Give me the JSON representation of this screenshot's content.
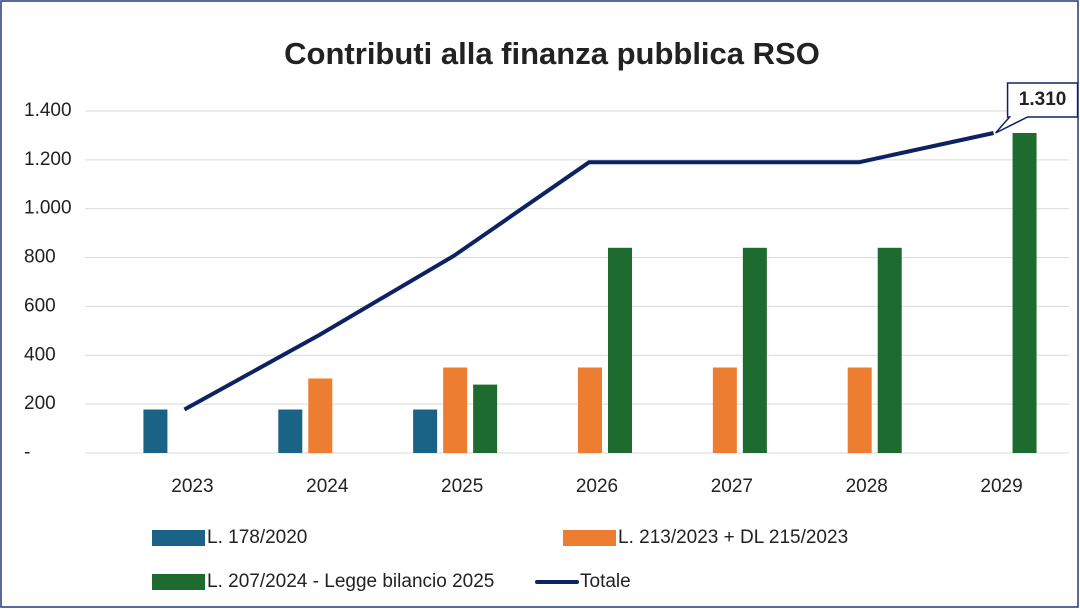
{
  "chart_data": {
    "type": "bar",
    "title": "Contributi alla finanza pubblica RSO",
    "categories": [
      "2023",
      "2024",
      "2025",
      "2026",
      "2027",
      "2028",
      "2029"
    ],
    "series": [
      {
        "name": "L. 178/2020",
        "color": "#1b6287",
        "values": [
          178,
          178,
          178,
          null,
          null,
          null,
          null
        ]
      },
      {
        "name": "L. 213/2023 + DL 215/2023",
        "color": "#ed7d31",
        "values": [
          null,
          305,
          350,
          350,
          350,
          350,
          null
        ]
      },
      {
        "name": "L. 207/2024 - Legge bilancio 2025",
        "color": "#1e6b2f",
        "values": [
          null,
          null,
          280,
          840,
          840,
          840,
          1310
        ]
      },
      {
        "name": "Totale",
        "type": "line",
        "color": "#0d2263",
        "values": [
          178,
          483,
          808,
          1190,
          1190,
          1190,
          1310
        ],
        "value_labels": [
          null,
          null,
          null,
          null,
          null,
          null,
          "1.310"
        ]
      }
    ],
    "ylim": [
      0,
      1400
    ],
    "yticks": [
      {
        "value": 0,
        "label": "-"
      },
      200,
      400,
      600,
      800,
      {
        "value": 1000,
        "label": "1.000"
      },
      {
        "value": 1200,
        "label": "1.200"
      },
      {
        "value": 1400,
        "label": "1.400"
      }
    ],
    "grid": true,
    "legend": "bottom"
  }
}
